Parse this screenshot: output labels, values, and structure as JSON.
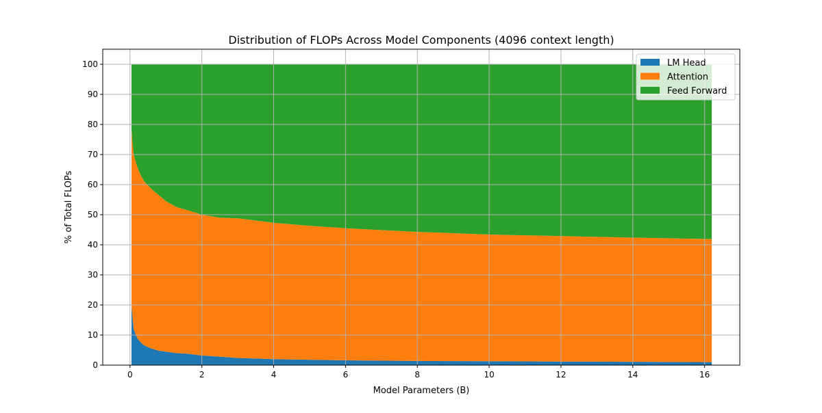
{
  "chart_data": {
    "type": "area",
    "stacked": true,
    "title": "Distribution of FLOPs Across Model Components (4096 context length)",
    "xlabel": "Model Parameters (B)",
    "ylabel": "% of Total FLOPs",
    "xlim": [
      -0.76,
      16.98
    ],
    "ylim": [
      0,
      105
    ],
    "xticks": [
      "0",
      "2",
      "4",
      "6",
      "8",
      "10",
      "12",
      "14",
      "16"
    ],
    "yticks": [
      "0",
      "10",
      "20",
      "30",
      "40",
      "50",
      "60",
      "70",
      "80",
      "90",
      "100"
    ],
    "grid": true,
    "legend": "top-right",
    "x": [
      0.04,
      0.1,
      0.2,
      0.3,
      0.4,
      0.6,
      0.8,
      1.0,
      1.3,
      1.6,
      2.0,
      2.5,
      3,
      4,
      5,
      6,
      8,
      10,
      12,
      14,
      16.2
    ],
    "series": [
      {
        "name": "LM Head",
        "color": "#1f77b4",
        "values": [
          20,
          12,
          9,
          7.5,
          6.5,
          5.5,
          4.8,
          4.5,
          4,
          3.8,
          3.2,
          2.8,
          2.4,
          2.0,
          1.8,
          1.6,
          1.4,
          1.3,
          1.2,
          1.1,
          1.0
        ]
      },
      {
        "name": "Attention",
        "color": "#ff7f0e",
        "values": [
          58,
          58,
          57,
          55.5,
          54.5,
          53,
          51.7,
          50,
          48.5,
          47.7,
          46.8,
          46.2,
          46.4,
          45.3,
          44.5,
          43.9,
          42.9,
          42.1,
          41.7,
          41.3,
          40.9
        ]
      },
      {
        "name": "Feed Forward",
        "color": "#2ca02c",
        "values": [
          22,
          30,
          34,
          37,
          39,
          41.5,
          43.5,
          45.5,
          47.5,
          48.5,
          50,
          51,
          51.2,
          52.7,
          53.7,
          54.5,
          55.7,
          56.6,
          57.1,
          57.6,
          58.1
        ]
      }
    ]
  }
}
